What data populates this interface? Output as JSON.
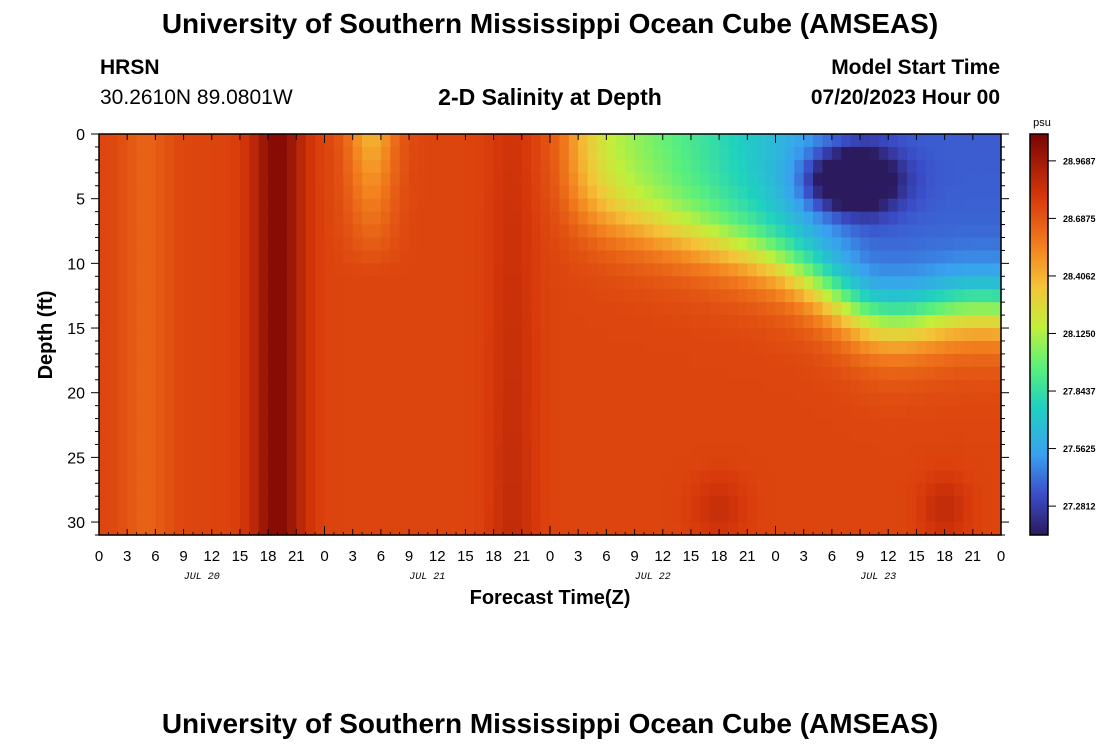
{
  "title": "University of Southern Mississippi Ocean Cube (AMSEAS)",
  "footer_title": "University of Southern Mississippi Ocean Cube (AMSEAS)",
  "station": {
    "name": "HRSN",
    "coords": "30.2610N  89.0801W"
  },
  "subtitle": "2-D Salinity at Depth",
  "model_start": {
    "label": "Model Start Time",
    "value": "07/20/2023 Hour 00"
  },
  "chart_data": {
    "type": "heatmap",
    "xlabel": "Forecast Time(Z)",
    "ylabel": "Depth (ft)",
    "x_range_hours": [
      0,
      96
    ],
    "ylim": [
      0,
      31
    ],
    "y_inverted": true,
    "x_tick_labels": [
      "0",
      "3",
      "6",
      "9",
      "12",
      "15",
      "18",
      "21",
      "0",
      "3",
      "6",
      "9",
      "12",
      "15",
      "18",
      "21",
      "0",
      "3",
      "6",
      "9",
      "12",
      "15",
      "18",
      "21",
      "0",
      "3",
      "6",
      "9",
      "12",
      "15",
      "18",
      "21",
      "0"
    ],
    "y_ticks": [
      0,
      5,
      10,
      15,
      20,
      25,
      30
    ],
    "date_labels": [
      "JUL 20",
      "JUL 21",
      "JUL 22",
      "JUL 23"
    ],
    "colorbar": {
      "unit": "psu",
      "min": 27.14,
      "max": 29.1,
      "tick_values": [
        27.2812,
        27.5625,
        27.8437,
        28.125,
        28.4062,
        28.6875,
        28.9687
      ],
      "tick_labels": [
        "27.2812",
        "27.5625",
        "27.8437",
        "28.1250",
        "28.4062",
        "28.6875",
        "28.9687"
      ]
    }
  }
}
